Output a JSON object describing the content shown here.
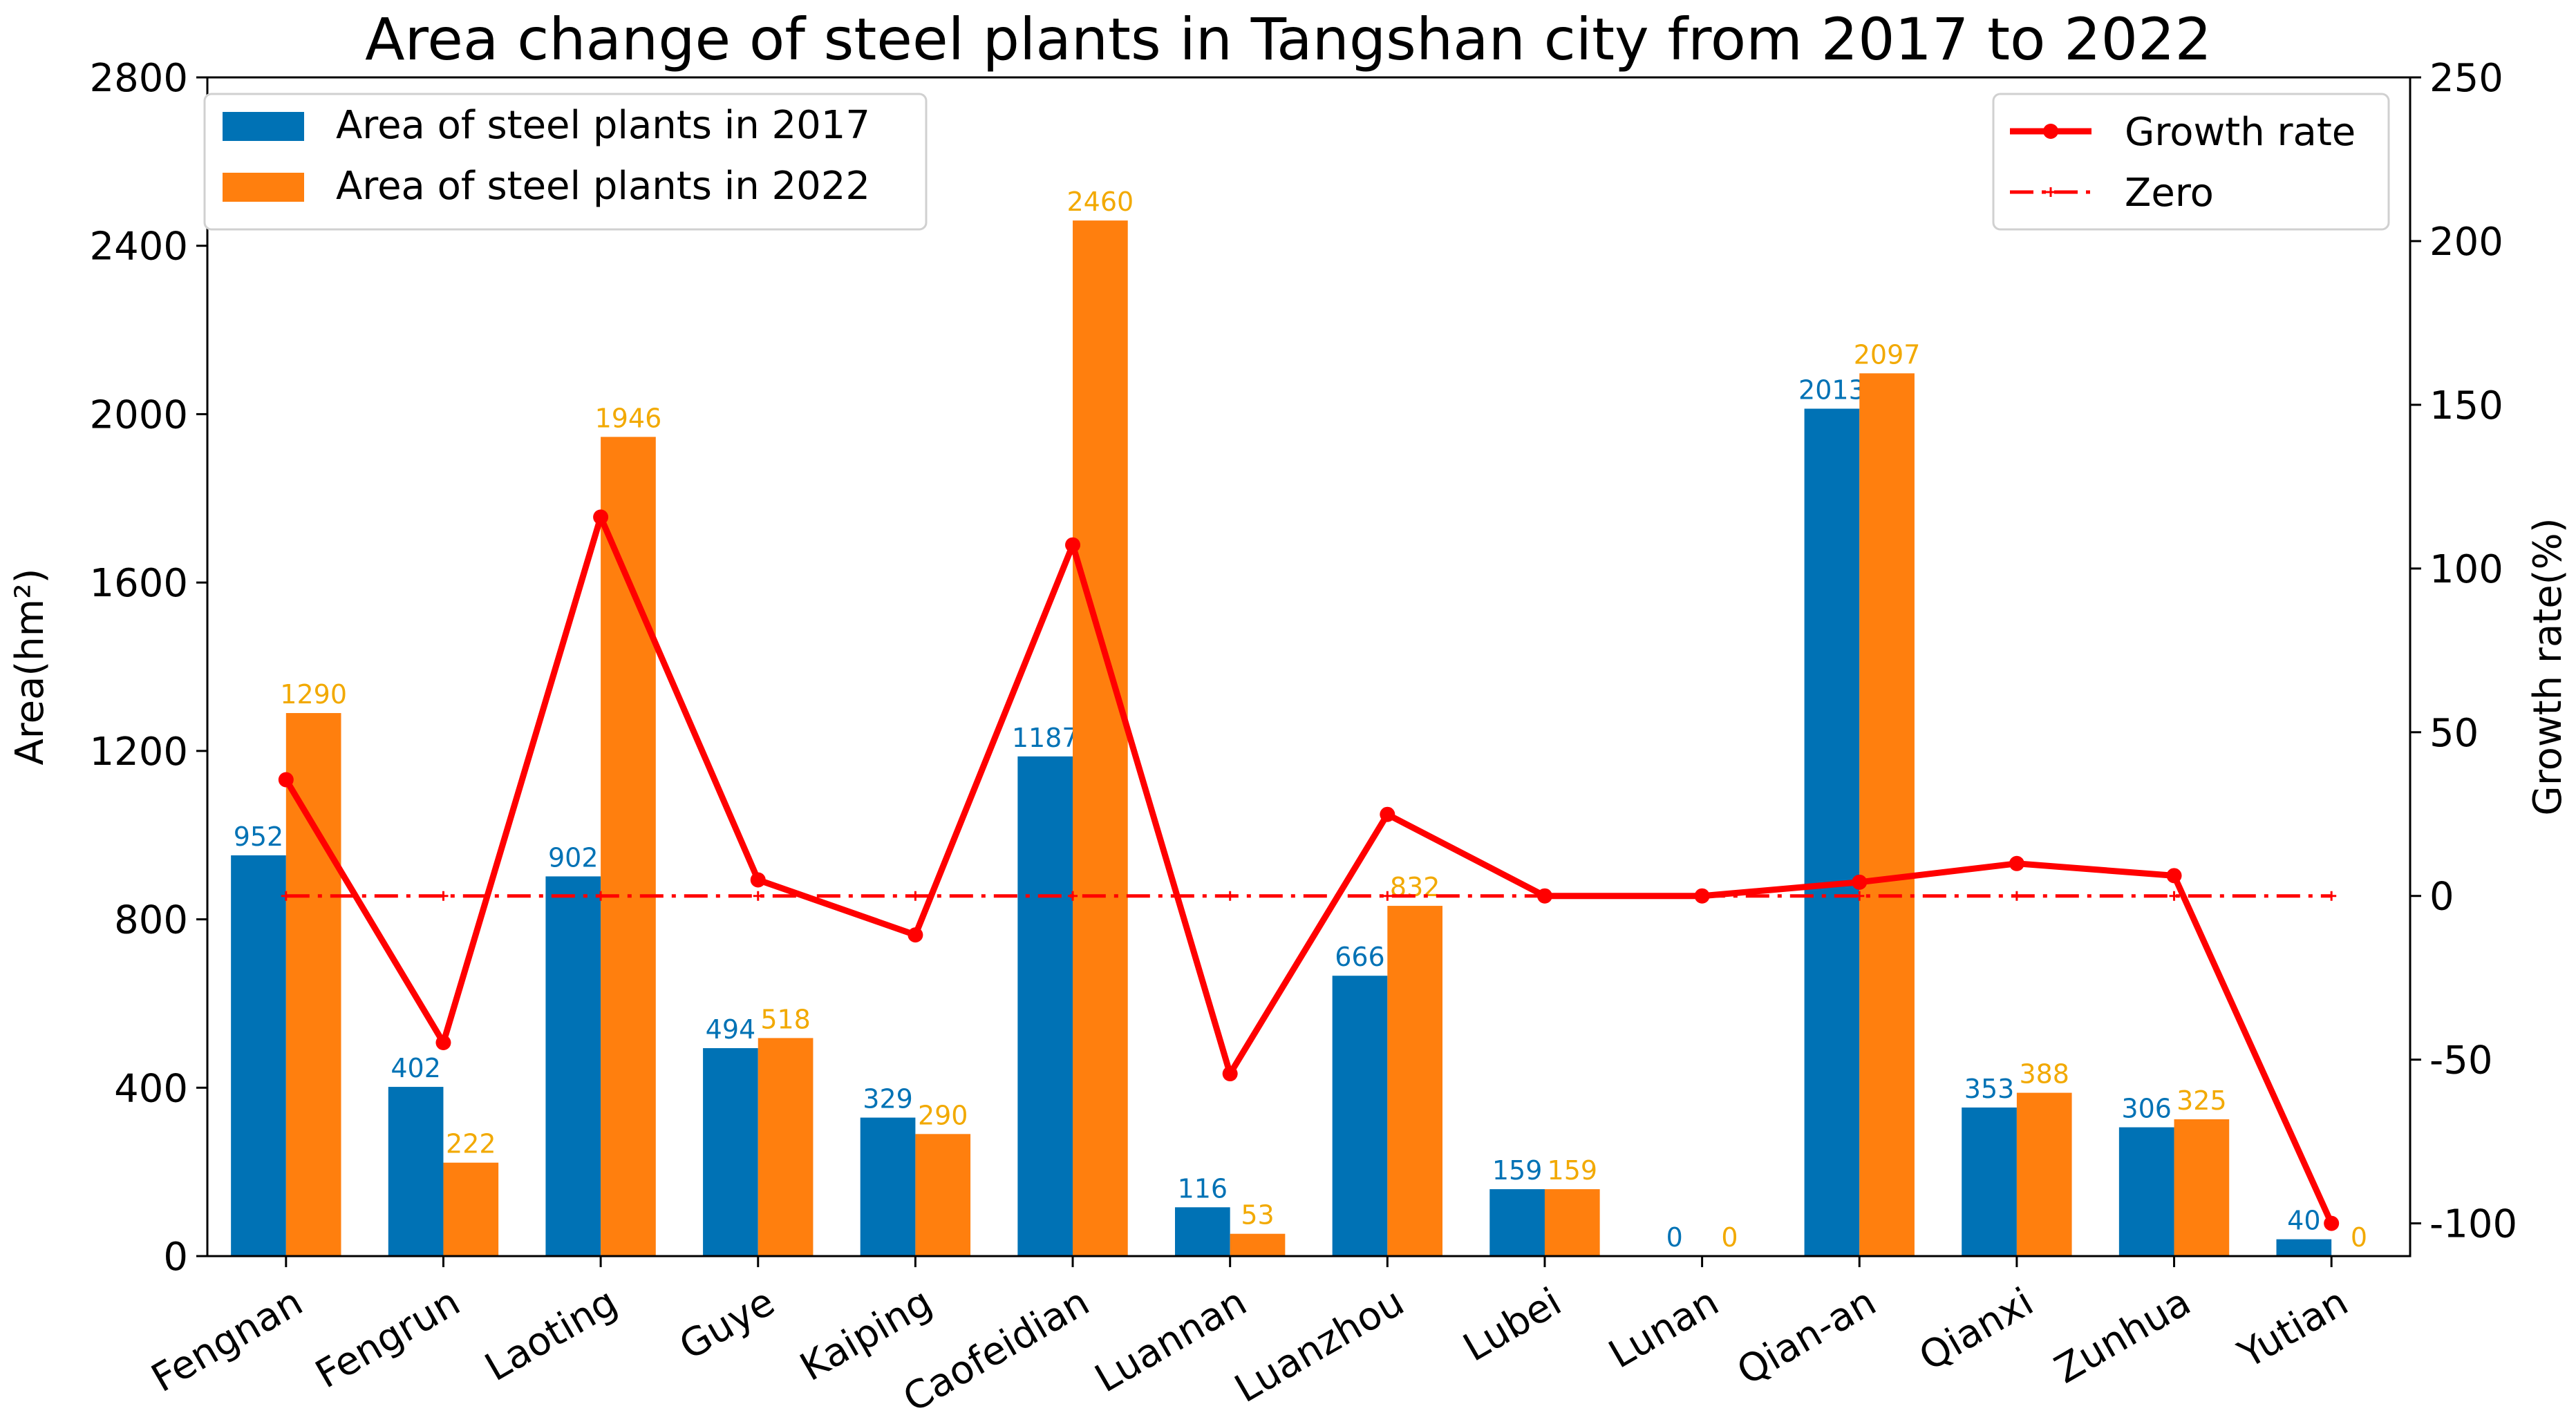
{
  "chart_data": {
    "type": "bar",
    "title": "Area change of steel plants in Tangshan city from 2017 to 2022",
    "xlabel": "",
    "ylabel": "Area(hm²)",
    "ylabel_right": "Growth rate(%)",
    "ylim": [
      0,
      2800
    ],
    "yticks": [
      0,
      400,
      800,
      1200,
      1600,
      2000,
      2400,
      2800
    ],
    "ylim_right": [
      -110,
      250
    ],
    "yticks_right": [
      -100,
      -50,
      0,
      50,
      100,
      150,
      200,
      250
    ],
    "categories": [
      "Fengnan",
      "Fengrun",
      "Laoting",
      "Guye",
      "Kaiping",
      "Caofeidian",
      "Luannan",
      "Luanzhou",
      "Lubei",
      "Lunan",
      "Qian-an",
      "Qianxi",
      "Zunhua",
      "Yutian"
    ],
    "series": [
      {
        "name": "Area of steel plants in 2017",
        "type": "bar",
        "color": "#0072B5",
        "label_color": "#0072B5",
        "axis": "left",
        "values": [
          952,
          402,
          902,
          494,
          329,
          1187,
          116,
          666,
          159,
          0,
          2013,
          353,
          306,
          40
        ]
      },
      {
        "name": "Area of steel plants in 2022",
        "type": "bar",
        "color": "#FF7F0E",
        "label_color": "#F2A900",
        "axis": "left",
        "values": [
          1290,
          222,
          1946,
          518,
          290,
          2460,
          53,
          832,
          159,
          0,
          2097,
          388,
          325,
          0
        ]
      },
      {
        "name": "Growth rate",
        "type": "line",
        "color": "#FF0000",
        "axis": "right",
        "values": [
          35.5,
          -44.8,
          115.7,
          4.9,
          -11.9,
          107.2,
          -54.3,
          24.9,
          0,
          0,
          4.2,
          9.9,
          6.2,
          -100
        ]
      },
      {
        "name": "Zero",
        "type": "line",
        "style": "dashdot",
        "color": "#FF0000",
        "axis": "right",
        "values": [
          0,
          0,
          0,
          0,
          0,
          0,
          0,
          0,
          0,
          0,
          0,
          0,
          0,
          0
        ]
      }
    ],
    "legend_left": [
      "Area of steel plants in 2017",
      "Area of steel plants in 2022"
    ],
    "legend_right": [
      "Growth rate",
      "Zero"
    ],
    "legend_left_position": "top-left",
    "legend_right_position": "top-right",
    "grid": false
  }
}
